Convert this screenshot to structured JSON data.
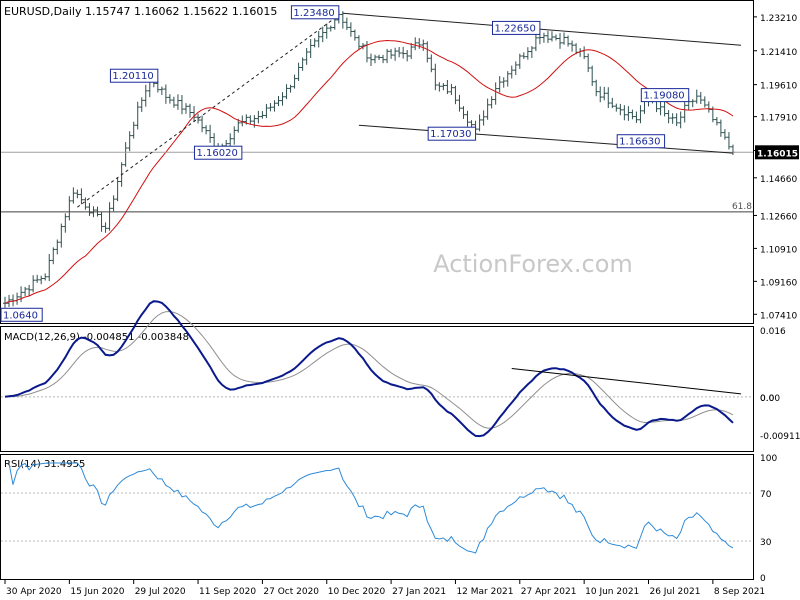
{
  "chart_data": [
    {
      "type": "ohlc",
      "header": "EURUSD,Daily  1.15747 1.16062 1.15622 1.16015",
      "y_ticks": [
        "1.23210",
        "1.21410",
        "1.19610",
        "1.17910",
        "1.16110",
        "1.14660",
        "1.12660",
        "1.10910",
        "1.09160",
        "1.07410"
      ],
      "ylim": [
        1.07,
        1.24
      ],
      "current_price": 1.16015,
      "current_label": "1.16015",
      "fib_level": 1.1285,
      "fib_label": "61.8",
      "watermark": "ActionForex.com",
      "anchors": [
        {
          "t": 0,
          "price": 1.08
        },
        {
          "t": 10,
          "price": 1.095
        },
        {
          "t": 17,
          "price": 1.14
        },
        {
          "t": 25,
          "price": 1.12
        },
        {
          "t": 31,
          "price": 1.17
        },
        {
          "t": 36,
          "price": 1.2
        },
        {
          "t": 40,
          "price": 1.19
        },
        {
          "t": 47,
          "price": 1.18
        },
        {
          "t": 53,
          "price": 1.161
        },
        {
          "t": 58,
          "price": 1.175
        },
        {
          "t": 64,
          "price": 1.18
        },
        {
          "t": 70,
          "price": 1.193
        },
        {
          "t": 76,
          "price": 1.215
        },
        {
          "t": 83,
          "price": 1.234
        },
        {
          "t": 87,
          "price": 1.22
        },
        {
          "t": 91,
          "price": 1.21
        },
        {
          "t": 96,
          "price": 1.212
        },
        {
          "t": 100,
          "price": 1.213
        },
        {
          "t": 104,
          "price": 1.22
        },
        {
          "t": 107,
          "price": 1.195
        },
        {
          "t": 111,
          "price": 1.193
        },
        {
          "t": 117,
          "price": 1.171
        },
        {
          "t": 122,
          "price": 1.195
        },
        {
          "t": 128,
          "price": 1.21
        },
        {
          "t": 133,
          "price": 1.223
        },
        {
          "t": 139,
          "price": 1.22
        },
        {
          "t": 144,
          "price": 1.21
        },
        {
          "t": 147,
          "price": 1.193
        },
        {
          "t": 152,
          "price": 1.185
        },
        {
          "t": 157,
          "price": 1.178
        },
        {
          "t": 160,
          "price": 1.19
        },
        {
          "t": 164,
          "price": 1.18
        },
        {
          "t": 167,
          "price": 1.175
        },
        {
          "t": 169,
          "price": 1.183
        },
        {
          "t": 172,
          "price": 1.19
        },
        {
          "t": 175,
          "price": 1.181
        },
        {
          "t": 178,
          "price": 1.17
        },
        {
          "t": 181,
          "price": 1.16
        }
      ],
      "ma_lag": 10,
      "price_labels": [
        {
          "text": "1.23480",
          "t": 83,
          "price": 1.2348,
          "align": "right"
        },
        {
          "text": "1.22650",
          "t": 133,
          "price": 1.2265,
          "align": "right"
        },
        {
          "text": "1.20110",
          "t": 38,
          "price": 1.2011,
          "align": "right"
        },
        {
          "text": "1.19080",
          "t": 170,
          "price": 1.1908,
          "align": "right"
        },
        {
          "text": "1.17030",
          "t": 117,
          "price": 1.1703,
          "align": "right"
        },
        {
          "text": "1.16630",
          "t": 164,
          "price": 1.1663,
          "align": "right"
        },
        {
          "text": "1.16020",
          "t": 53,
          "price": 1.1602,
          "align": "center"
        },
        {
          "text": "1.0640",
          "t": 0,
          "price": 1.0741,
          "align": "right"
        }
      ],
      "channel_top": [
        {
          "t": 84,
          "price": 1.234
        },
        {
          "t": 183,
          "price": 1.217
        }
      ],
      "channel_bottom": [
        {
          "t": 88,
          "price": 1.1745
        },
        {
          "t": 181,
          "price": 1.1597
        }
      ],
      "dashed_trend": [
        {
          "t": 18,
          "price": 1.131
        },
        {
          "t": 83,
          "price": 1.233
        }
      ]
    },
    {
      "type": "line",
      "title": "MACD(12,26,9) -0.004851 -0.003848",
      "y_ticks": [
        "0.016",
        "0.00",
        "0.0",
        "-0.009116"
      ],
      "ylim": [
        -0.0125,
        0.0165
      ],
      "zero_line": 0,
      "trendline": [
        {
          "t": 126,
          "price": 0.0068
        },
        {
          "t": 183,
          "price": 0.0007
        }
      ]
    },
    {
      "type": "line",
      "title": "RSI(14) 31.4955",
      "y_ticks": [
        "100",
        "70",
        "30",
        "0"
      ],
      "ylim": [
        0,
        100
      ],
      "levels": [
        70,
        30
      ]
    }
  ],
  "x_labels": [
    {
      "text": "30 Apr 2020",
      "t": 0
    },
    {
      "text": "15 Jun 2020",
      "t": 16
    },
    {
      "text": "29 Jul 2020",
      "t": 32
    },
    {
      "text": "11 Sep 2020",
      "t": 48
    },
    {
      "text": "27 Oct 2020",
      "t": 64
    },
    {
      "text": "10 Dec 2020",
      "t": 80
    },
    {
      "text": "27 Jan 2021",
      "t": 96
    },
    {
      "text": "12 Mar 2021",
      "t": 112
    },
    {
      "text": "27 Apr 2021",
      "t": 128
    },
    {
      "text": "10 Jun 2021",
      "t": 144
    },
    {
      "text": "26 Jul 2021",
      "t": 160
    },
    {
      "text": "8 Sep 2021",
      "t": 176
    }
  ],
  "colors": {
    "bars": "#2f4f4f",
    "ma": "#d01010",
    "macd": "#0a1a8c",
    "signal": "#909090",
    "rsi": "#2e8bd8",
    "label_border": "#1a2a9a",
    "label_text": "#1a2a9a",
    "watermark": "#c8c8c8",
    "grid_dashed": "#b8b8b8"
  }
}
